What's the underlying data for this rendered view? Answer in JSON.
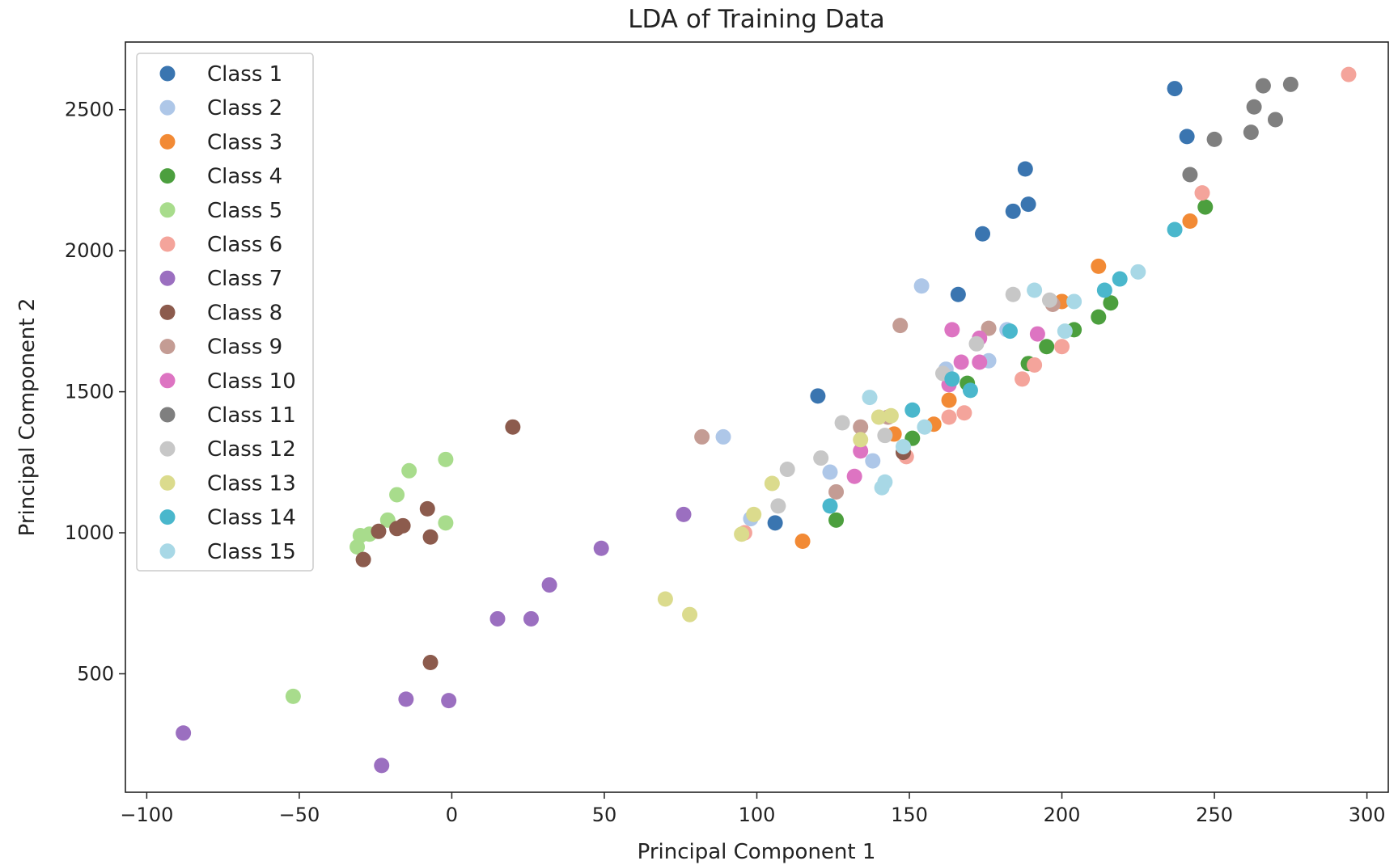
{
  "chart_data": {
    "type": "scatter",
    "title": "LDA of Training Data",
    "xlabel": "Principal Component 1",
    "ylabel": "Principal Component 2",
    "xlim": [
      -107,
      307
    ],
    "ylim": [
      80,
      2740
    ],
    "xticks": [
      -100,
      -50,
      0,
      50,
      100,
      150,
      200,
      250,
      300
    ],
    "yticks": [
      500,
      1000,
      1500,
      2000,
      2500
    ],
    "grid": false,
    "legend_position": "top-left",
    "series": [
      {
        "name": "Class 1",
        "color": "#3a75b0",
        "points": [
          [
            237,
            2575
          ],
          [
            241,
            2405
          ],
          [
            188,
            2290
          ],
          [
            189,
            2165
          ],
          [
            184,
            2140
          ],
          [
            174,
            2060
          ],
          [
            166,
            1845
          ],
          [
            120,
            1485
          ],
          [
            106,
            1035
          ]
        ]
      },
      {
        "name": "Class 2",
        "color": "#aec7e8",
        "points": [
          [
            154,
            1875
          ],
          [
            162,
            1580
          ],
          [
            176,
            1610
          ],
          [
            89,
            1340
          ],
          [
            124,
            1215
          ],
          [
            138,
            1255
          ],
          [
            98,
            1050
          ],
          [
            182,
            1720
          ]
        ]
      },
      {
        "name": "Class 3",
        "color": "#f28a35",
        "points": [
          [
            212,
            1945
          ],
          [
            242,
            2105
          ],
          [
            200,
            1820
          ],
          [
            163,
            1470
          ],
          [
            158,
            1385
          ],
          [
            145,
            1350
          ],
          [
            115,
            970
          ]
        ]
      },
      {
        "name": "Class 4",
        "color": "#4c9f3e",
        "points": [
          [
            247,
            2155
          ],
          [
            216,
            1815
          ],
          [
            212,
            1765
          ],
          [
            204,
            1720
          ],
          [
            195,
            1660
          ],
          [
            189,
            1600
          ],
          [
            169,
            1530
          ],
          [
            151,
            1335
          ],
          [
            126,
            1045
          ]
        ]
      },
      {
        "name": "Class 5",
        "color": "#a8dc8c",
        "points": [
          [
            -14,
            1220
          ],
          [
            -2,
            1260
          ],
          [
            -18,
            1135
          ],
          [
            -21,
            1045
          ],
          [
            -30,
            990
          ],
          [
            -31,
            950
          ],
          [
            -27,
            995
          ],
          [
            -2,
            1035
          ],
          [
            -52,
            420
          ]
        ]
      },
      {
        "name": "Class 6",
        "color": "#f4a49b",
        "points": [
          [
            294,
            2625
          ],
          [
            246,
            2205
          ],
          [
            200,
            1660
          ],
          [
            191,
            1595
          ],
          [
            187,
            1545
          ],
          [
            168,
            1425
          ],
          [
            163,
            1410
          ],
          [
            149,
            1270
          ],
          [
            96,
            1000
          ]
        ]
      },
      {
        "name": "Class 7",
        "color": "#9b6fc0",
        "points": [
          [
            76,
            1065
          ],
          [
            49,
            945
          ],
          [
            32,
            815
          ],
          [
            15,
            695
          ],
          [
            26,
            695
          ],
          [
            -15,
            410
          ],
          [
            -1,
            405
          ],
          [
            -88,
            290
          ],
          [
            -23,
            175
          ]
        ]
      },
      {
        "name": "Class 8",
        "color": "#8c5b4d",
        "points": [
          [
            20,
            1375
          ],
          [
            -8,
            1085
          ],
          [
            -16,
            1025
          ],
          [
            -18,
            1015
          ],
          [
            -24,
            1005
          ],
          [
            -7,
            985
          ],
          [
            -29,
            905
          ],
          [
            -7,
            540
          ],
          [
            148,
            1285
          ]
        ]
      },
      {
        "name": "Class 9",
        "color": "#c49c94",
        "points": [
          [
            147,
            1735
          ],
          [
            176,
            1725
          ],
          [
            197,
            1810
          ],
          [
            82,
            1340
          ],
          [
            134,
            1375
          ],
          [
            143,
            1410
          ],
          [
            126,
            1145
          ]
        ]
      },
      {
        "name": "Class 10",
        "color": "#dd74c2",
        "points": [
          [
            164,
            1720
          ],
          [
            173,
            1690
          ],
          [
            192,
            1705
          ],
          [
            167,
            1605
          ],
          [
            173,
            1605
          ],
          [
            163,
            1525
          ],
          [
            134,
            1290
          ],
          [
            132,
            1200
          ]
        ]
      },
      {
        "name": "Class 11",
        "color": "#7f7f7f",
        "points": [
          [
            266,
            2585
          ],
          [
            275,
            2590
          ],
          [
            263,
            2510
          ],
          [
            270,
            2465
          ],
          [
            262,
            2420
          ],
          [
            250,
            2395
          ],
          [
            242,
            2270
          ]
        ]
      },
      {
        "name": "Class 12",
        "color": "#c7c7c7",
        "points": [
          [
            184,
            1845
          ],
          [
            196,
            1825
          ],
          [
            172,
            1670
          ],
          [
            161,
            1565
          ],
          [
            128,
            1390
          ],
          [
            142,
            1345
          ],
          [
            121,
            1265
          ],
          [
            110,
            1225
          ],
          [
            107,
            1095
          ]
        ]
      },
      {
        "name": "Class 13",
        "color": "#dbdb8d",
        "points": [
          [
            105,
            1175
          ],
          [
            99,
            1065
          ],
          [
            95,
            995
          ],
          [
            70,
            765
          ],
          [
            78,
            710
          ],
          [
            134,
            1330
          ],
          [
            140,
            1410
          ],
          [
            144,
            1415
          ]
        ]
      },
      {
        "name": "Class 14",
        "color": "#4ab7cc",
        "points": [
          [
            237,
            2075
          ],
          [
            219,
            1900
          ],
          [
            214,
            1860
          ],
          [
            183,
            1715
          ],
          [
            170,
            1505
          ],
          [
            164,
            1545
          ],
          [
            151,
            1435
          ],
          [
            124,
            1095
          ]
        ]
      },
      {
        "name": "Class 15",
        "color": "#a8d8e6",
        "points": [
          [
            225,
            1925
          ],
          [
            191,
            1860
          ],
          [
            204,
            1820
          ],
          [
            201,
            1715
          ],
          [
            155,
            1375
          ],
          [
            148,
            1305
          ],
          [
            137,
            1480
          ],
          [
            142,
            1180
          ],
          [
            141,
            1160
          ]
        ]
      }
    ]
  }
}
